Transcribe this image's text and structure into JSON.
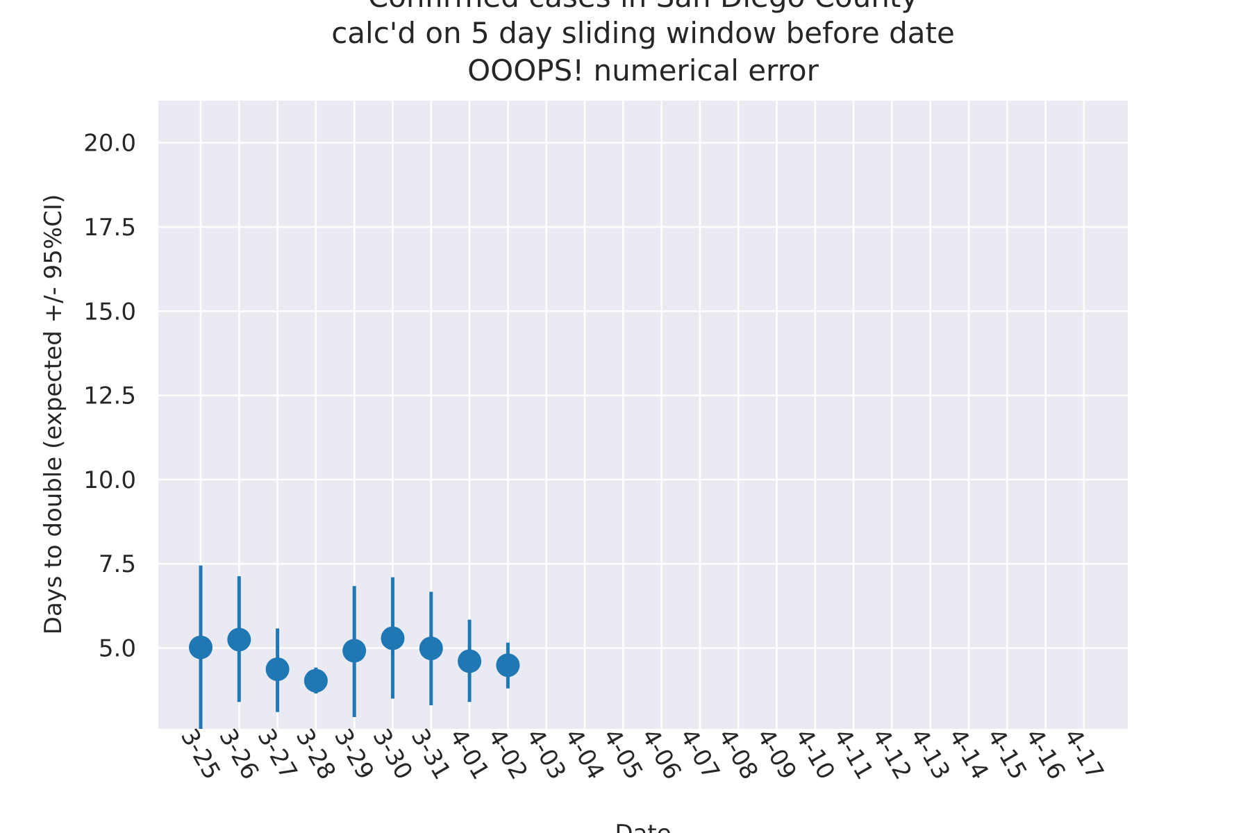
{
  "chart_data": {
    "type": "scatter",
    "title_lines": [
      "Confirmed cases in San Diego County",
      "calc'd on 5 day sliding window before date",
      "OOOPS! numerical error"
    ],
    "xlabel": "Date",
    "ylabel": "Days to double (expected +/- 95%CI)",
    "categories": [
      "3-25",
      "3-26",
      "3-27",
      "3-28",
      "3-29",
      "3-30",
      "3-31",
      "4-01",
      "4-02",
      "4-03",
      "4-04",
      "4-05",
      "4-06",
      "4-07",
      "4-08",
      "4-09",
      "4-10",
      "4-11",
      "4-12",
      "4-13",
      "4-14",
      "4-15",
      "4-16",
      "4-17"
    ],
    "yticks": [
      "5.0",
      "7.5",
      "10.0",
      "12.5",
      "15.0",
      "17.5",
      "20.0"
    ],
    "ylim": [
      2.6,
      21.25
    ],
    "grid": true,
    "colors": {
      "background": "#eaeaf2",
      "grid": "#ffffff",
      "series": "#1f77b4"
    },
    "series": [
      {
        "values": [
          5.02,
          5.25,
          4.37,
          4.03,
          4.92,
          5.29,
          4.99,
          4.61,
          4.49
        ],
        "ci_low": [
          2.6,
          3.4,
          3.1,
          3.65,
          2.95,
          3.5,
          3.3,
          3.4,
          3.8
        ],
        "ci_high": [
          7.45,
          7.13,
          5.58,
          4.42,
          6.84,
          7.1,
          6.67,
          5.84,
          5.16
        ]
      }
    ]
  }
}
